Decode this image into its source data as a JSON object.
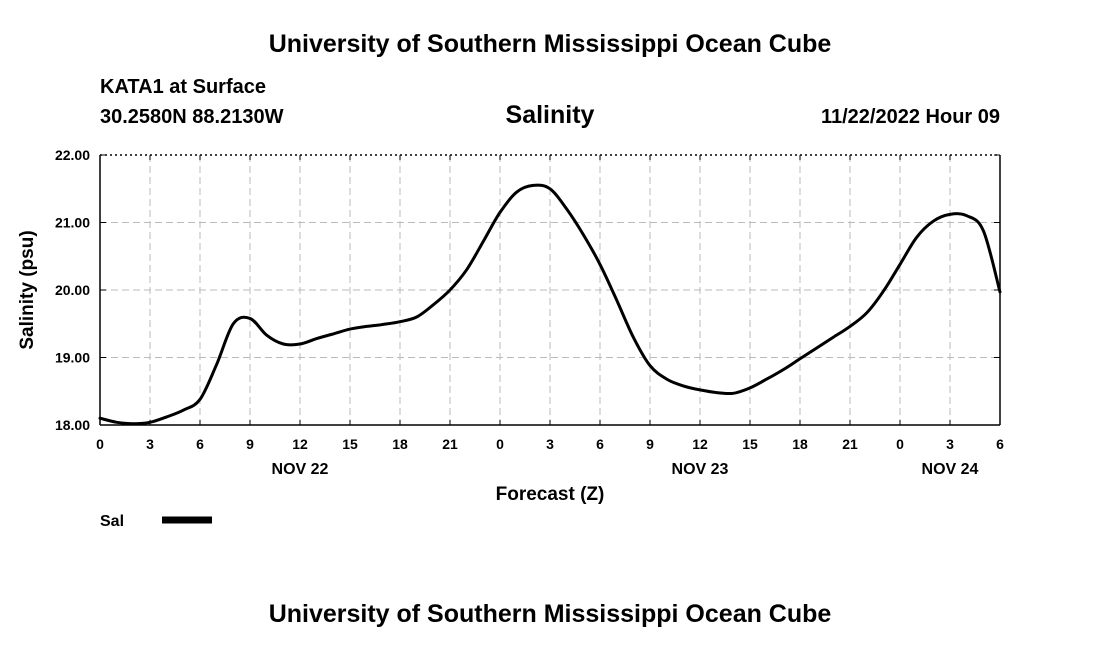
{
  "page": {
    "top_title": "University of Southern Mississippi Ocean Cube",
    "bottom_title": "University of Southern Mississippi Ocean Cube",
    "station": "KATA1 at Surface",
    "coords": "30.2580N  88.2130W",
    "timestamp": "11/22/2022 Hour 09"
  },
  "chart_data": {
    "type": "line",
    "title": "Salinity",
    "xlabel": "Forecast (Z)",
    "ylabel": "Salinity (psu)",
    "ylim": [
      18.0,
      22.0
    ],
    "xlim": [
      0,
      54
    ],
    "x_unit": "hours from 00Z Nov 22",
    "grid": true,
    "y_ticks": [
      "18.00",
      "19.00",
      "20.00",
      "21.00",
      "22.00"
    ],
    "x_tick_labels": [
      "0",
      "3",
      "6",
      "9",
      "12",
      "15",
      "18",
      "21",
      "0",
      "3",
      "6",
      "9",
      "12",
      "15",
      "18",
      "21",
      "0",
      "3",
      "6"
    ],
    "date_labels": [
      {
        "label": "NOV 22",
        "hour": 12
      },
      {
        "label": "NOV 23",
        "hour": 36
      },
      {
        "label": "NOV 24",
        "hour": 51
      }
    ],
    "legend": {
      "placement": "bottom-left",
      "entries": [
        "Sal"
      ]
    },
    "series": [
      {
        "name": "Sal",
        "color": "#000000",
        "x": [
          0,
          1,
          2,
          3,
          4,
          5,
          6,
          7,
          8,
          9,
          10,
          11,
          12,
          13,
          14,
          15,
          16,
          17,
          18,
          19,
          20,
          21,
          22,
          23,
          24,
          25,
          26,
          27,
          28,
          29,
          30,
          31,
          32,
          33,
          34,
          35,
          36,
          37,
          38,
          39,
          40,
          41,
          42,
          43,
          44,
          45,
          46,
          47,
          48,
          49,
          50,
          51,
          52,
          53,
          54
        ],
        "values": [
          18.1,
          18.04,
          18.02,
          18.04,
          18.12,
          18.22,
          18.38,
          18.9,
          19.5,
          19.58,
          19.33,
          19.2,
          19.2,
          19.28,
          19.35,
          19.42,
          19.46,
          19.49,
          19.53,
          19.6,
          19.78,
          20.0,
          20.3,
          20.72,
          21.15,
          21.45,
          21.55,
          21.5,
          21.2,
          20.82,
          20.38,
          19.85,
          19.3,
          18.88,
          18.68,
          18.58,
          18.52,
          18.48,
          18.47,
          18.55,
          18.68,
          18.82,
          18.98,
          19.14,
          19.3,
          19.46,
          19.66,
          19.98,
          20.38,
          20.78,
          21.02,
          21.12,
          21.1,
          20.88,
          19.97
        ]
      }
    ]
  }
}
